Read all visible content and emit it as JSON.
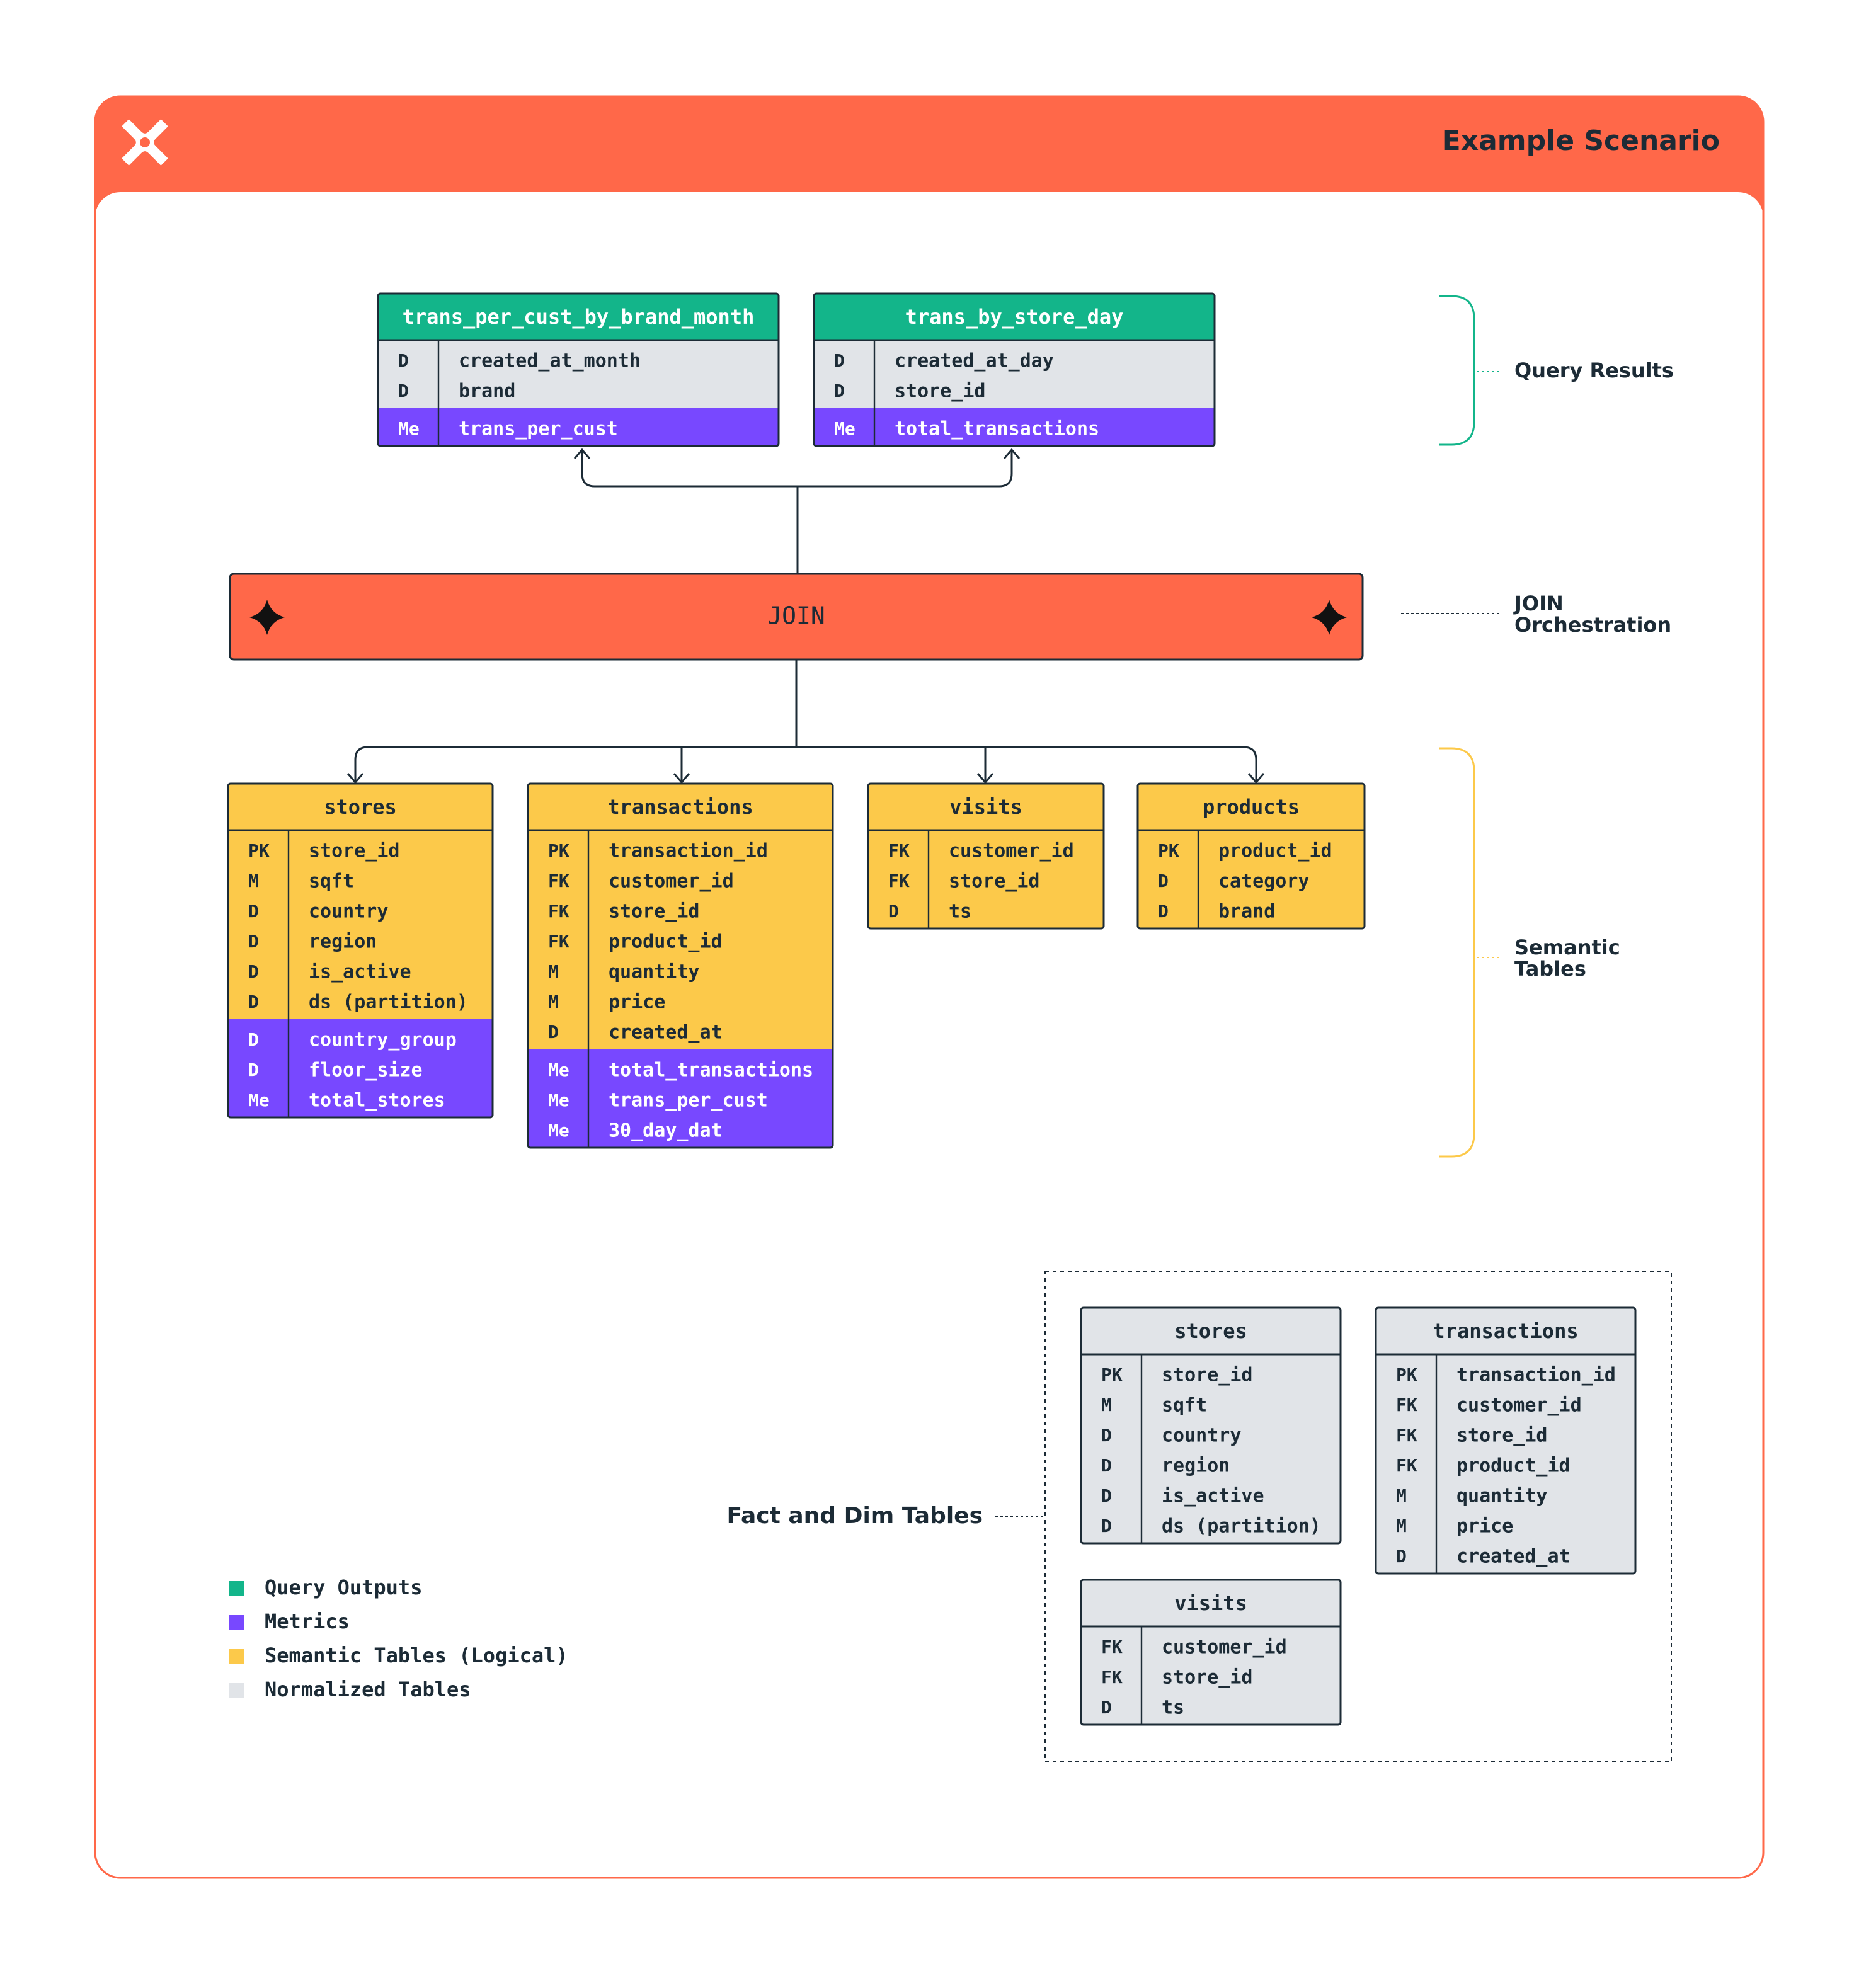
{
  "header": {
    "title": "Example Scenario"
  },
  "query_results": [
    {
      "title": "trans_per_cust_by_brand_month",
      "rows": [
        [
          "D",
          "created_at_month"
        ],
        [
          "D",
          "brand"
        ]
      ],
      "metrics": [
        [
          "Me",
          "trans_per_cust"
        ]
      ]
    },
    {
      "title": "trans_by_store_day",
      "rows": [
        [
          "D",
          "created_at_day"
        ],
        [
          "D",
          "store_id"
        ]
      ],
      "metrics": [
        [
          "Me",
          "total_transactions"
        ]
      ]
    }
  ],
  "join": {
    "label": "JOIN"
  },
  "semantic_tables": [
    {
      "title": "stores",
      "rows": [
        [
          "PK",
          "store_id"
        ],
        [
          "M",
          "sqft"
        ],
        [
          "D",
          "country"
        ],
        [
          "D",
          "region"
        ],
        [
          "D",
          "is_active"
        ],
        [
          "D",
          "ds (partition)"
        ]
      ],
      "metrics": [
        [
          "D",
          "country_group"
        ],
        [
          "D",
          "floor_size"
        ],
        [
          "Me",
          "total_stores"
        ]
      ]
    },
    {
      "title": "transactions",
      "rows": [
        [
          "PK",
          "transaction_id"
        ],
        [
          "FK",
          "customer_id"
        ],
        [
          "FK",
          "store_id"
        ],
        [
          "FK",
          "product_id"
        ],
        [
          "M",
          "quantity"
        ],
        [
          "M",
          "price"
        ],
        [
          "D",
          "created_at"
        ]
      ],
      "metrics": [
        [
          "Me",
          "total_transactions"
        ],
        [
          "Me",
          "trans_per_cust"
        ],
        [
          "Me",
          "30_day_dat"
        ]
      ]
    },
    {
      "title": "visits",
      "rows": [
        [
          "FK",
          "customer_id"
        ],
        [
          "FK",
          "store_id"
        ],
        [
          "D",
          "ts"
        ]
      ]
    },
    {
      "title": "products",
      "rows": [
        [
          "PK",
          "product_id"
        ],
        [
          "D",
          "category"
        ],
        [
          "D",
          "brand"
        ]
      ]
    }
  ],
  "fact_dim_tables": [
    {
      "title": "stores",
      "rows": [
        [
          "PK",
          "store_id"
        ],
        [
          "M",
          "sqft"
        ],
        [
          "D",
          "country"
        ],
        [
          "D",
          "region"
        ],
        [
          "D",
          "is_active"
        ],
        [
          "D",
          "ds (partition)"
        ]
      ]
    },
    {
      "title": "transactions",
      "rows": [
        [
          "PK",
          "transaction_id"
        ],
        [
          "FK",
          "customer_id"
        ],
        [
          "FK",
          "store_id"
        ],
        [
          "FK",
          "product_id"
        ],
        [
          "M",
          "quantity"
        ],
        [
          "M",
          "price"
        ],
        [
          "D",
          "created_at"
        ]
      ]
    },
    {
      "title": "visits",
      "rows": [
        [
          "FK",
          "customer_id"
        ],
        [
          "FK",
          "store_id"
        ],
        [
          "D",
          "ts"
        ]
      ]
    }
  ],
  "annotations": {
    "query_results": "Query Results",
    "join": [
      "JOIN",
      "Orchestration"
    ],
    "semantic": [
      "Semantic",
      "Tables"
    ],
    "fact_dim": "Fact and Dim Tables"
  },
  "legend": [
    "Query Outputs",
    "Metrics",
    "Semantic Tables (Logical)",
    "Normalized Tables"
  ]
}
